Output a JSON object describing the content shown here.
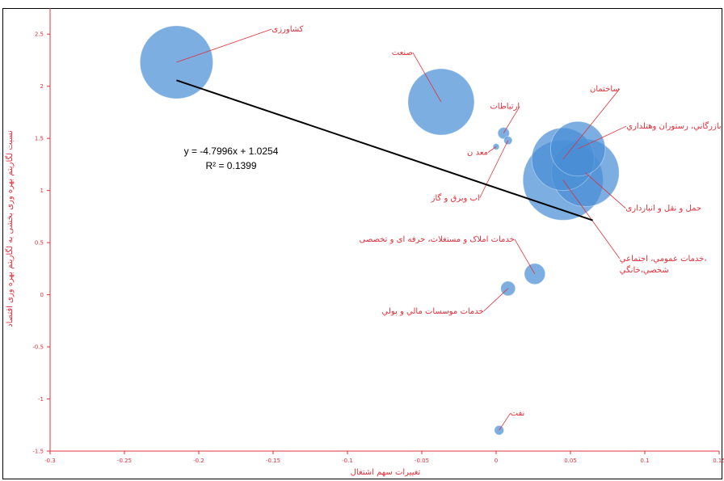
{
  "chart_data": {
    "type": "scatter",
    "xlabel": "تغییرات سهم اشتغال",
    "ylabel": "نسبت لگاریتم بهره وری بخشی به لگاریتم بهره وری اقتصاد",
    "xlim": [
      -0.3,
      0.15
    ],
    "ylim": [
      -1.5,
      2.75
    ],
    "xticks": [
      "-0.3",
      "-0.25",
      "-0.2",
      "-0.15",
      "-0.1",
      "-0.05",
      "0",
      "0.05",
      "0.1",
      "0.15"
    ],
    "yticks": [
      "-1.5",
      "-1",
      "-0.5",
      "0",
      "0.5",
      "1",
      "1.5",
      "2",
      "2.5"
    ],
    "bubble_color": "#4a8fd6",
    "label_color": "#e0303a",
    "points": [
      {
        "label": "کشاورزی",
        "x": -0.215,
        "y": 2.23,
        "size": 0.35
      },
      {
        "label": "صنعت",
        "x": -0.037,
        "y": 1.85,
        "size": 0.318
      },
      {
        "label": "ارتباطات",
        "x": 0.005,
        "y": 1.55,
        "size": 0.055
      },
      {
        "label": "معد ن",
        "x": 0.0,
        "y": 1.42,
        "size": 0.03
      },
      {
        "label": "اب وبرق و گاز",
        "x": 0.008,
        "y": 1.48,
        "size": 0.04
      },
      {
        "label": "ساختمان",
        "x": 0.045,
        "y": 1.3,
        "size": 0.3
      },
      {
        "label": "بازرگاني، رستوران وهتلداري",
        "x": 0.055,
        "y": 1.4,
        "size": 0.262
      },
      {
        "label": "حمل و نقل و انبارداری",
        "x": 0.06,
        "y": 1.17,
        "size": 0.324
      },
      {
        "label": "خدمات عمومي، اجتماعي، شخصي،خانگي",
        "x": 0.045,
        "y": 1.1,
        "size": 0.385
      },
      {
        "label": "خدمات املاک و مستغلات، حرفه ای و تخصصی",
        "x": 0.026,
        "y": 0.2,
        "size": 0.1
      },
      {
        "label": "خدمات موسسات مالي و پولي",
        "x": 0.008,
        "y": 0.06,
        "size": 0.07
      },
      {
        "label": "نفت",
        "x": 0.002,
        "y": -1.3,
        "size": 0.045
      }
    ],
    "trendline": {
      "slope": -4.7996,
      "intercept": 1.0254,
      "x_range": [
        -0.215,
        0.065
      ],
      "color": "#000000"
    },
    "equation": "y = -4.7996x + 1.0254",
    "r_squared": "R² = 0.1399"
  }
}
